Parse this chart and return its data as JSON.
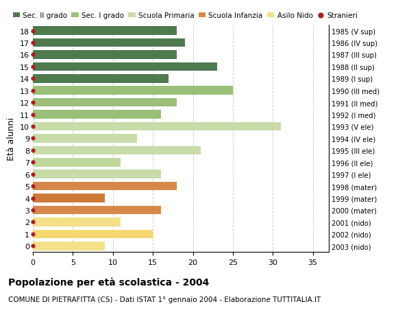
{
  "ages": [
    0,
    1,
    2,
    3,
    4,
    5,
    6,
    7,
    8,
    9,
    10,
    11,
    12,
    13,
    14,
    15,
    16,
    17,
    18
  ],
  "years": [
    "2003 (nido)",
    "2002 (nido)",
    "2001 (nido)",
    "2000 (mater)",
    "1999 (mater)",
    "1998 (mater)",
    "1997 (I ele)",
    "1996 (II ele)",
    "1995 (III ele)",
    "1994 (IV ele)",
    "1993 (V ele)",
    "1992 (I med)",
    "1991 (II med)",
    "1990 (III med)",
    "1989 (I sup)",
    "1988 (II sup)",
    "1987 (III sup)",
    "1986 (IV sup)",
    "1985 (V sup)"
  ],
  "values": [
    9,
    15,
    11,
    16,
    9,
    18,
    16,
    11,
    21,
    13,
    31,
    16,
    18,
    25,
    17,
    23,
    18,
    19,
    18
  ],
  "colors": [
    "#f5e08a",
    "#f5d870",
    "#f5e08a",
    "#d4884a",
    "#cc7a3a",
    "#d4884a",
    "#c8dba8",
    "#c0d89a",
    "#c8dba8",
    "#c8dba8",
    "#c8dba8",
    "#9bbf78",
    "#9bbf78",
    "#9bbf78",
    "#4e7a4e",
    "#4e7a4e",
    "#4e7a4e",
    "#4e7a4e",
    "#4e7a4e"
  ],
  "stranieri_color": "#aa2222",
  "title": "Popolazione per età scolastica - 2004",
  "subtitle": "COMUNE DI PIETRAFITTA (CS) - Dati ISTAT 1° gennaio 2004 - Elaborazione TUTTITALIA.IT",
  "ylabel": "Età alunni",
  "xlim": [
    0,
    37
  ],
  "xticks": [
    0,
    5,
    10,
    15,
    20,
    25,
    30,
    35
  ],
  "legend_labels": [
    "Sec. II grado",
    "Sec. I grado",
    "Scuola Primaria",
    "Scuola Infanzia",
    "Asilo Nido",
    "Stranieri"
  ],
  "legend_colors": [
    "#4e7a4e",
    "#9bbf78",
    "#c8dba8",
    "#d4884a",
    "#f5e08a",
    "#aa2222"
  ],
  "bg_color": "#ffffff",
  "grid_color": "#cccccc"
}
